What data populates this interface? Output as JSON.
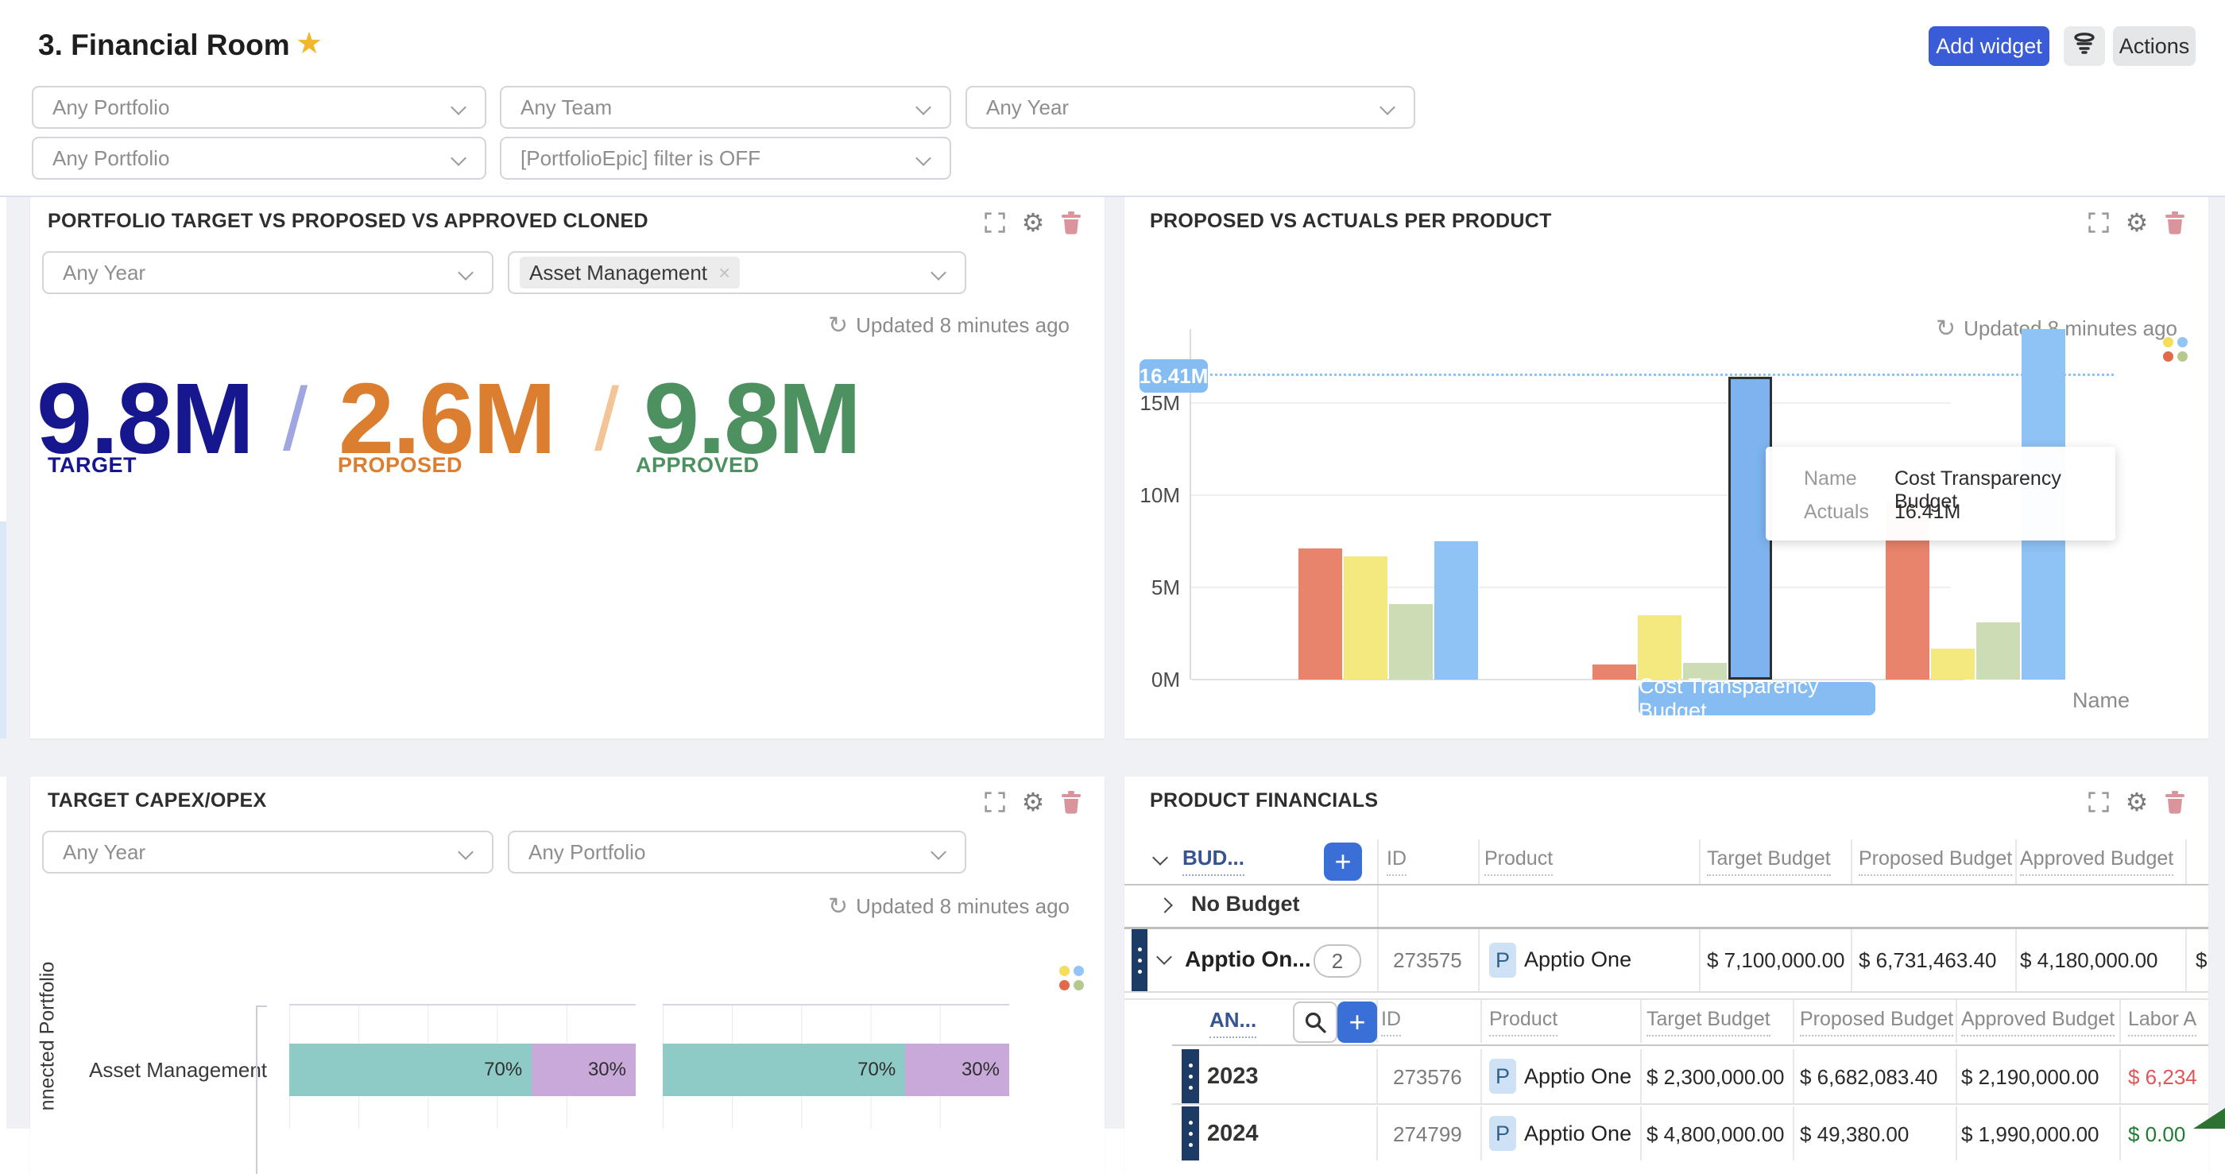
{
  "icons": {
    "close": "×",
    "star": "★",
    "refresh": "↻",
    "gear": "⚙",
    "plus": "+"
  },
  "page": {
    "title": "3. Financial Room",
    "add_widget": "Add widget",
    "actions": "Actions"
  },
  "filters": {
    "row1": [
      "Any Portfolio",
      "Any Team",
      "Any Year"
    ],
    "row2": [
      "Any Portfolio",
      "[PortfolioEpic] filter is OFF"
    ]
  },
  "portfolio_widget": {
    "title": "PORTFOLIO TARGET VS PROPOSED VS APPROVED CLONED",
    "filter_year": "Any Year",
    "filter_tag": "Asset Management",
    "updated": "Updated 8 minutes ago",
    "separator": "/",
    "kpis": [
      {
        "value": "9.8M",
        "label": "TARGET",
        "color": "#16168e"
      },
      {
        "value": "2.6M",
        "label": "PROPOSED",
        "color": "#dc7e2f"
      },
      {
        "value": "9.8M",
        "label": "APPROVED",
        "color": "#4d9161"
      }
    ]
  },
  "proposed_widget": {
    "title": "PROPOSED VS ACTUALS PER PRODUCT",
    "updated": "Updated 8 minutes ago",
    "chart_data": {
      "type": "bar",
      "xlabel": "Name",
      "ylabel_ticks": [
        "0M",
        "5M",
        "10M",
        "15M"
      ],
      "ylim": [
        0,
        19.5
      ],
      "grid": true,
      "series_colors": {
        "red": "#e8846b",
        "yellow": "#f4e97e",
        "green": "#ccdcb4",
        "blue": "#8fc3f5"
      },
      "groups": [
        {
          "name": "",
          "values": [
            7.1,
            6.7,
            4.1,
            7.5
          ]
        },
        {
          "name": "Cost Transparency Budget",
          "values": [
            0.8,
            3.5,
            0.9,
            16.41
          ],
          "selected_index": 3
        },
        {
          "name": "",
          "values": [
            9.7,
            1.7,
            3.1,
            19.0
          ]
        }
      ],
      "highlight": {
        "value_label": "16.41M",
        "bar_label": "Cost Transparency Budget",
        "value": 16.41
      },
      "tooltip": {
        "rows": [
          {
            "label": "Name",
            "value": "Cost Transparency Budget"
          },
          {
            "label": "Actuals",
            "value": "16.41M"
          }
        ]
      }
    }
  },
  "capex_widget": {
    "title": "TARGET CAPEX/OPEX",
    "filter_year": "Any Year",
    "filter_portfolio": "Any Portfolio",
    "updated": "Updated 8 minutes ago",
    "chart_data": {
      "type": "stacked-horizontal-bar",
      "axis_label": "nnected Portfolio",
      "category": "Asset Management",
      "panels": [
        {
          "segments": [
            {
              "label": "70%",
              "value": 70,
              "color": "#8ecbc6"
            },
            {
              "label": "30%",
              "value": 30,
              "color": "#c9a8da"
            }
          ]
        },
        {
          "segments": [
            {
              "label": "70%",
              "value": 70,
              "color": "#8ecbc6"
            },
            {
              "label": "30%",
              "value": 30,
              "color": "#c9a8da"
            }
          ]
        }
      ]
    }
  },
  "financials_widget": {
    "title": "PRODUCT FINANCIALS",
    "group_header": {
      "label": "BUD...",
      "columns": [
        "ID",
        "Product",
        "Target Budget",
        "Proposed Budget",
        "Approved Budget"
      ]
    },
    "rows": {
      "no_budget": {
        "label": "No Budget"
      },
      "group": {
        "label": "Apptio On...",
        "count": "2",
        "id": "273575",
        "product_initial": "P",
        "product": "Apptio One",
        "target": "$ 7,100,000.00",
        "proposed": "$ 6,731,463.40",
        "approved": "$ 4,180,000.00",
        "labor_partial": "$"
      },
      "nested_header": {
        "label": "AN...",
        "columns": [
          "ID",
          "Product",
          "Target Budget",
          "Proposed Budget",
          "Approved Budget",
          "Labor A"
        ]
      },
      "years": [
        {
          "year": "2023",
          "id": "273576",
          "product_initial": "P",
          "product": "Apptio One",
          "target": "$ 2,300,000.00",
          "proposed": "$ 6,682,083.40",
          "approved": "$ 2,190,000.00",
          "labor": "$ 6,234",
          "labor_color": "#e25555"
        },
        {
          "year": "2024",
          "id": "274799",
          "product_initial": "P",
          "product": "Apptio One",
          "target": "$ 4,800,000.00",
          "proposed": "$ 49,380.00",
          "approved": "$ 1,990,000.00",
          "labor": "$ 0.00",
          "labor_color": "#1e7d32"
        }
      ]
    }
  }
}
